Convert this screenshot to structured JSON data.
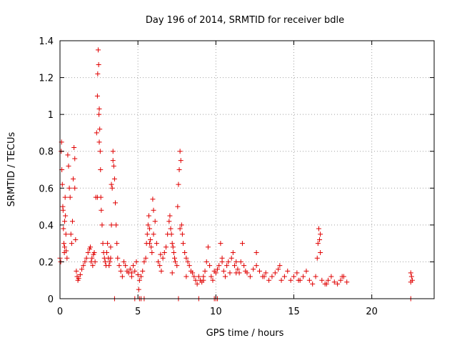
{
  "colors": {
    "series": "#e00000",
    "axis": "#000000",
    "grid": "#a0a0a0",
    "background": "#ffffff"
  },
  "chart_data": {
    "type": "scatter",
    "title": "Day 196 of 2014, SRMTID for receiver bdle",
    "xlabel": "GPS time / hours",
    "ylabel": "SRMTID / TECUs",
    "xlim": [
      0,
      24
    ],
    "ylim": [
      0,
      1.4
    ],
    "xticks": [
      0,
      5,
      10,
      15,
      20
    ],
    "yticks": [
      0,
      0.2,
      0.4,
      0.6,
      0.8,
      1,
      1.2,
      1.4
    ],
    "xtick_labels": [
      "0",
      "5",
      "10",
      "15",
      "20"
    ],
    "ytick_labels": [
      "0",
      "0.2",
      "0.4",
      "0.6",
      "0.8",
      "1",
      "1.2",
      "1.4"
    ],
    "grid": true,
    "legend": "none",
    "marker": "+",
    "series": [
      {
        "name": "SRMTID",
        "x": [
          0.0,
          0.05,
          0.08,
          0.1,
          0.12,
          0.15,
          0.18,
          0.2,
          0.22,
          0.25,
          0.28,
          0.3,
          0.33,
          0.35,
          0.38,
          0.4,
          0.45,
          0.5,
          0.55,
          0.6,
          0.65,
          0.7,
          0.75,
          0.8,
          0.85,
          0.9,
          0.95,
          1.0,
          1.05,
          1.1,
          1.15,
          1.2,
          1.3,
          1.4,
          1.5,
          1.6,
          1.7,
          1.8,
          1.9,
          2.0,
          2.05,
          2.1,
          2.15,
          2.2,
          2.25,
          2.3,
          2.35,
          2.4,
          2.42,
          2.45,
          2.48,
          2.5,
          2.52,
          2.55,
          2.58,
          2.6,
          2.62,
          2.65,
          2.7,
          2.75,
          2.8,
          2.85,
          2.9,
          2.95,
          3.0,
          3.05,
          3.1,
          3.15,
          3.2,
          3.25,
          3.3,
          3.35,
          3.4,
          3.45,
          3.5,
          3.55,
          3.6,
          3.65,
          3.7,
          3.8,
          3.9,
          4.0,
          4.1,
          4.2,
          4.3,
          4.4,
          4.5,
          4.6,
          4.7,
          4.8,
          4.9,
          5.0,
          5.05,
          5.1,
          5.2,
          5.3,
          5.4,
          5.5,
          5.55,
          5.6,
          5.65,
          5.7,
          5.75,
          5.8,
          5.85,
          5.9,
          5.95,
          6.0,
          6.1,
          6.2,
          6.3,
          6.4,
          6.5,
          6.6,
          6.7,
          6.8,
          6.9,
          7.0,
          7.05,
          7.1,
          7.15,
          7.2,
          7.25,
          7.3,
          7.35,
          7.4,
          7.5,
          7.55,
          7.6,
          7.65,
          7.7,
          7.75,
          7.8,
          7.85,
          7.9,
          8.0,
          8.1,
          8.2,
          8.3,
          8.4,
          8.5,
          8.6,
          8.7,
          8.8,
          8.9,
          9.0,
          9.1,
          9.2,
          9.3,
          9.4,
          9.5,
          9.6,
          9.7,
          9.8,
          9.9,
          10.0,
          10.1,
          10.2,
          10.3,
          10.4,
          10.5,
          10.6,
          10.7,
          10.8,
          10.9,
          11.0,
          11.1,
          11.2,
          11.3,
          11.4,
          11.5,
          11.6,
          11.7,
          11.8,
          11.9,
          12.0,
          12.2,
          12.4,
          12.6,
          12.8,
          13.0,
          13.2,
          13.4,
          13.6,
          13.8,
          14.0,
          14.2,
          14.4,
          14.6,
          14.8,
          15.0,
          15.2,
          15.4,
          15.6,
          15.8,
          16.0,
          16.2,
          16.4,
          16.5,
          16.55,
          16.6,
          16.65,
          16.7,
          16.8,
          17.0,
          17.2,
          17.4,
          17.6,
          17.8,
          18.0,
          18.2,
          18.4,
          22.5,
          22.55,
          22.6,
          22.5,
          3.5,
          4.8,
          5.1,
          5.2,
          5.4,
          7.6,
          8.9,
          9.9,
          10.0,
          10.1,
          22.5,
          1.95,
          2.4,
          2.52,
          3.4,
          6.0,
          7.7,
          12.6,
          14.1,
          16.7,
          0.3,
          0.95,
          3.25,
          3.3,
          4.6,
          5.75,
          6.45,
          7.2,
          8.1,
          9.2,
          10.4,
          11.3,
          13.1,
          15.3,
          17.1,
          18.1
        ],
        "y": [
          0.22,
          0.2,
          0.8,
          0.85,
          0.7,
          0.62,
          0.5,
          0.48,
          0.38,
          0.3,
          0.25,
          0.28,
          0.55,
          0.45,
          0.35,
          0.26,
          0.22,
          0.78,
          0.72,
          0.6,
          0.55,
          0.35,
          0.3,
          0.42,
          0.65,
          0.82,
          0.76,
          0.32,
          0.15,
          0.12,
          0.1,
          0.11,
          0.13,
          0.16,
          0.18,
          0.2,
          0.22,
          0.25,
          0.27,
          0.2,
          0.22,
          0.18,
          0.24,
          0.25,
          0.2,
          0.55,
          0.9,
          1.1,
          1.22,
          1.35,
          1.27,
          1.0,
          1.03,
          0.92,
          0.8,
          0.7,
          0.55,
          0.48,
          0.4,
          0.3,
          0.25,
          0.22,
          0.2,
          0.18,
          0.25,
          0.3,
          0.22,
          0.18,
          0.2,
          0.28,
          0.4,
          0.6,
          0.8,
          0.72,
          0.65,
          0.52,
          0.4,
          0.3,
          0.22,
          0.18,
          0.15,
          0.12,
          0.2,
          0.18,
          0.15,
          0.14,
          0.16,
          0.14,
          0.18,
          0.15,
          0.2,
          0.13,
          0.05,
          0.1,
          0.12,
          0.15,
          0.2,
          0.22,
          0.3,
          0.35,
          0.4,
          0.45,
          0.38,
          0.32,
          0.28,
          0.25,
          0.54,
          0.48,
          0.42,
          0.3,
          0.2,
          0.18,
          0.15,
          0.22,
          0.25,
          0.28,
          0.35,
          0.42,
          0.45,
          0.38,
          0.35,
          0.3,
          0.28,
          0.25,
          0.22,
          0.2,
          0.18,
          0.5,
          0.62,
          0.7,
          0.8,
          0.75,
          0.4,
          0.35,
          0.3,
          0.25,
          0.22,
          0.2,
          0.18,
          0.15,
          0.14,
          0.12,
          0.1,
          0.08,
          0.12,
          0.1,
          0.09,
          0.12,
          0.15,
          0.2,
          0.28,
          0.18,
          0.12,
          0.1,
          0.15,
          0.14,
          0.16,
          0.18,
          0.3,
          0.22,
          0.15,
          0.12,
          0.18,
          0.2,
          0.14,
          0.22,
          0.25,
          0.18,
          0.2,
          0.16,
          0.14,
          0.2,
          0.3,
          0.18,
          0.15,
          0.14,
          0.12,
          0.16,
          0.18,
          0.15,
          0.12,
          0.14,
          0.1,
          0.12,
          0.14,
          0.16,
          0.1,
          0.12,
          0.15,
          0.1,
          0.12,
          0.14,
          0.1,
          0.12,
          0.15,
          0.1,
          0.08,
          0.12,
          0.22,
          0.3,
          0.38,
          0.32,
          0.25,
          0.1,
          0.08,
          0.1,
          0.12,
          0.09,
          0.08,
          0.1,
          0.12,
          0.09,
          0.14,
          0.12,
          0.1,
          0.09,
          0.0,
          0.0,
          0.0,
          0.0,
          0.0,
          0.0,
          0.0,
          0.0,
          0.0,
          0.0,
          0.0,
          0.28,
          0.55,
          0.85,
          0.75,
          0.35,
          0.38,
          0.25,
          0.18,
          0.35,
          0.42,
          0.6,
          0.22,
          0.62,
          0.12,
          0.3,
          0.24,
          0.14,
          0.12,
          0.1,
          0.2,
          0.14,
          0.12,
          0.1,
          0.08,
          0.12
        ]
      }
    ]
  }
}
